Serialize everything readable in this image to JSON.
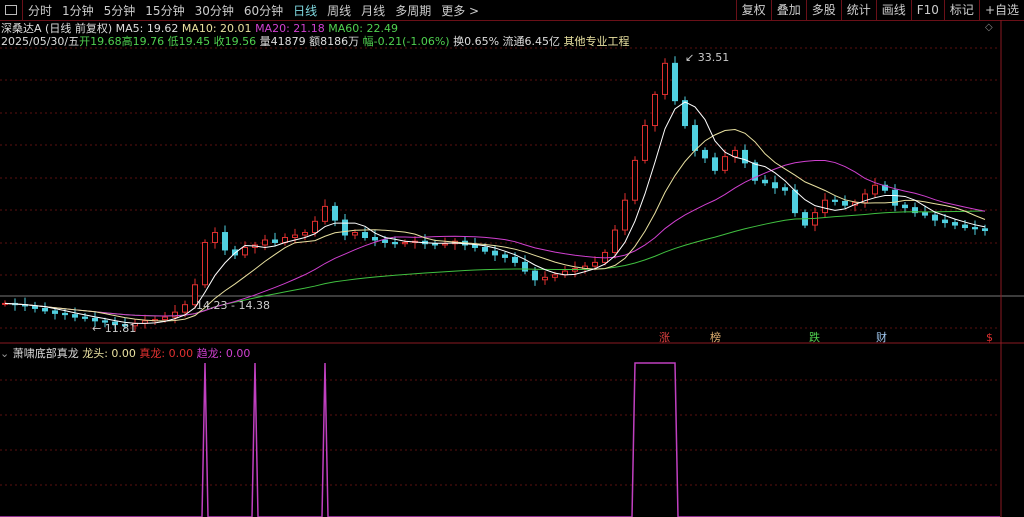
{
  "toolbar": {
    "periods": [
      "分时",
      "1分钟",
      "5分钟",
      "15分钟",
      "30分钟",
      "60分钟",
      "日线",
      "周线",
      "月线",
      "多周期",
      "更多 >"
    ],
    "active": "日线",
    "right_buttons": [
      "复权",
      "叠加",
      "多股",
      "统计",
      "画线",
      "F10",
      "标记",
      "+自选"
    ]
  },
  "header": {
    "name": "深桑达A",
    "mode": "(日线 前复权)",
    "ma5": "MA5: 19.62",
    "ma10": "MA10: 20.01",
    "ma20": "MA20: 21.18",
    "ma60": "MA60: 22.49",
    "date": "2025/05/30/五",
    "open": "开19.68",
    "high": "高19.76",
    "low": "低19.45",
    "close": "收19.56",
    "vol": "量41879",
    "amount": "额8186万",
    "change": "幅-0.21(-1.06%)",
    "turnover": "换0.65%",
    "float": "流通6.45亿",
    "industry": "其他专业工程"
  },
  "annotations": {
    "max": "33.51",
    "min": "11.81",
    "range": "14.23 - 14.38"
  },
  "event_markers": [
    {
      "label": "涨",
      "color": "#e04040"
    },
    {
      "label": "榜",
      "color": "#e0b070"
    },
    {
      "label": "跌",
      "color": "#50d050"
    },
    {
      "label": "财",
      "color": "#a0c8f0"
    },
    {
      "label": "$",
      "color": "#e03030"
    }
  ],
  "indicator": {
    "name": "萧啸底部真龙",
    "l1": "龙头: 0.00",
    "l2": "真龙: 0.00",
    "l3": "趋龙: 0.00"
  },
  "chart_data": {
    "type": "candlestick",
    "ylim": [
      11.81,
      33.51
    ],
    "closes": [
      13.7,
      13.6,
      13.5,
      13.3,
      13.1,
      12.9,
      12.8,
      12.6,
      12.5,
      12.3,
      12.2,
      12.0,
      11.9,
      12.1,
      12.3,
      12.4,
      12.6,
      13.0,
      13.6,
      15.2,
      18.6,
      19.4,
      18.0,
      17.6,
      18.2,
      18.4,
      18.8,
      18.6,
      19.0,
      19.2,
      19.4,
      20.3,
      21.5,
      20.4,
      19.2,
      19.4,
      19.0,
      18.8,
      18.6,
      18.5,
      18.6,
      18.7,
      18.5,
      18.4,
      18.5,
      18.7,
      18.4,
      18.2,
      17.9,
      17.6,
      17.4,
      17.0,
      16.3,
      15.6,
      15.8,
      16.0,
      16.3,
      16.5,
      16.7,
      17.0,
      17.8,
      19.6,
      22.0,
      25.2,
      28.0,
      30.5,
      33.0,
      30.0,
      28.0,
      26.0,
      25.4,
      24.4,
      25.5,
      26.0,
      25.0,
      23.6,
      23.4,
      23.0,
      22.8,
      21.0,
      20.0,
      21.0,
      22.0,
      21.9,
      21.6,
      21.8,
      22.5,
      23.2,
      22.8,
      21.6,
      21.4,
      21.0,
      20.8,
      20.4,
      20.2,
      20.0,
      19.8,
      19.7,
      19.56
    ],
    "ma_colors": {
      "ma5": "#ffffff",
      "ma10": "#e8e0a0",
      "ma20": "#d040d0",
      "ma60": "#40c040"
    },
    "up_color": "#e03030",
    "down_color": "#50d0e0",
    "signal_candles": [
      20,
      25,
      32,
      63,
      64,
      65,
      66,
      67
    ],
    "signal_color": "#c040c0"
  }
}
